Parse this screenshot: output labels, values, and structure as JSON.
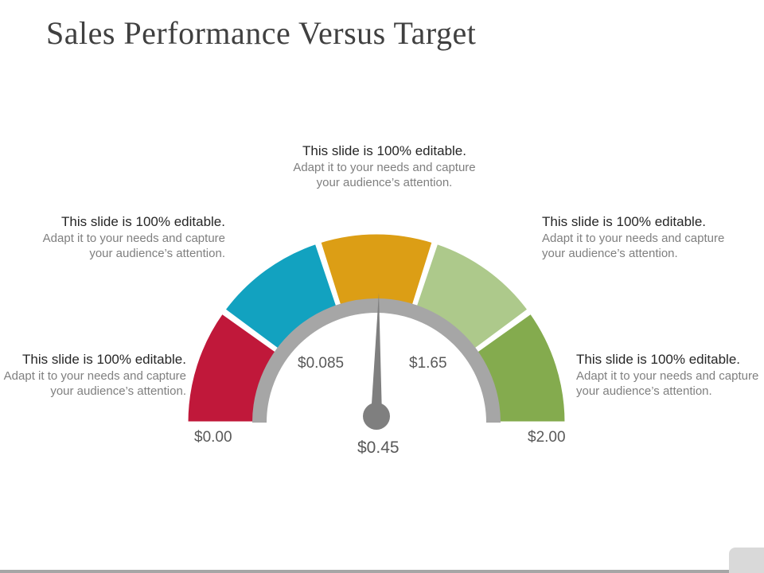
{
  "slide": {
    "title": "Sales Performance Versus Target"
  },
  "callouts": [
    {
      "lead": "This slide is 100% editable.",
      "sub": "Adapt it to your needs and capture your audience’s attention."
    },
    {
      "lead": "This slide is 100% editable.",
      "sub": "Adapt it to your needs and capture your audience’s attention."
    },
    {
      "lead": "This slide is 100% editable.",
      "sub": "Adapt it to your needs and capture your audience’s attention."
    },
    {
      "lead": "This slide is 100% editable.",
      "sub": "Adapt it to your needs and capture your audience’s attention."
    },
    {
      "lead": "This slide is 100% editable.",
      "sub": "Adapt it to your needs and capture your audience’s attention."
    }
  ],
  "gauge": {
    "min_label": "$0.00",
    "max_label": "$2.00",
    "inner_left_label": "$0.085",
    "inner_right_label": "$1.65",
    "value_label": "$0.45",
    "segments": [
      {
        "color": "#c0183a"
      },
      {
        "color": "#12a2c0"
      },
      {
        "color": "#dc9e15"
      },
      {
        "color": "#adc98b"
      },
      {
        "color": "#84ab4e"
      }
    ],
    "track_color": "#a6a6a6",
    "needle_color": "#7f7f7f"
  }
}
